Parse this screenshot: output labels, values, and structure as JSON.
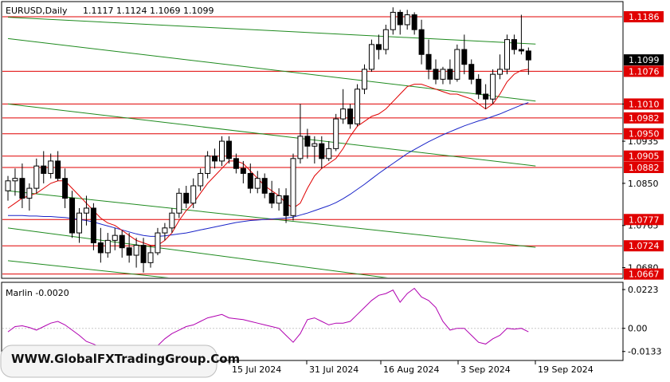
{
  "header": {
    "symbol_timeframe": "EURUSD,Daily",
    "ohlc": "1.1117 1.1124 1.1069 1.1099"
  },
  "watermark": "WWW.GlobalFXTradingGroup.Com",
  "colors": {
    "background": "#ffffff",
    "candle": "#000000",
    "level_line": "#e00000",
    "channel_line": "#1e8a1e",
    "ma_fast": "#e00000",
    "ma_slow": "#1a24c8",
    "oscillator": "#b000b0",
    "price_tag_bg": "#e00000",
    "current_price_bg": "#000000"
  },
  "chart_data": [
    {
      "type": "candlestick",
      "title": "EURUSD,Daily",
      "ylim": [
        1.066,
        1.1215
      ],
      "y_ticks": [
        "1.1010",
        "1.0935",
        "1.0850",
        "1.0765",
        "1.0680"
      ],
      "current_price": "1.1099",
      "levels": [
        "1.1186",
        "1.1076",
        "1.1010",
        "1.0982",
        "1.0950",
        "1.0905",
        "1.0882",
        "1.0777",
        "1.0724",
        "1.0667"
      ],
      "x_labels": [
        "15 Jul 2024",
        "31 Jul 2024",
        "16 Aug 2024",
        "3 Sep 2024",
        "19 Sep 2024"
      ],
      "candles": [
        [
          1.0835,
          1.0865,
          1.0815,
          1.0855
        ],
        [
          1.0855,
          1.088,
          1.0825,
          1.086
        ],
        [
          1.086,
          1.089,
          1.08,
          1.082
        ],
        [
          1.082,
          1.085,
          1.0795,
          1.084
        ],
        [
          1.084,
          1.09,
          1.083,
          1.0885
        ],
        [
          1.0885,
          1.0915,
          1.085,
          1.087
        ],
        [
          1.087,
          1.091,
          1.086,
          1.0895
        ],
        [
          1.0895,
          1.0915,
          1.0855,
          1.086
        ],
        [
          1.086,
          1.088,
          1.08,
          1.082
        ],
        [
          1.082,
          1.0835,
          1.074,
          1.075
        ],
        [
          1.075,
          1.08,
          1.073,
          1.079
        ],
        [
          1.079,
          1.0825,
          1.0765,
          1.08
        ],
        [
          1.08,
          1.081,
          1.0715,
          1.073
        ],
        [
          1.073,
          1.076,
          1.069,
          1.071
        ],
        [
          1.071,
          1.075,
          1.07,
          1.0735
        ],
        [
          1.0735,
          1.076,
          1.0715,
          1.0745
        ],
        [
          1.0745,
          1.0755,
          1.07,
          1.072
        ],
        [
          1.072,
          1.075,
          1.069,
          1.0705
        ],
        [
          1.0705,
          1.074,
          1.068,
          1.0725
        ],
        [
          1.0725,
          1.074,
          1.067,
          1.069
        ],
        [
          1.069,
          1.0725,
          1.068,
          1.071
        ],
        [
          1.071,
          1.076,
          1.0705,
          1.075
        ],
        [
          1.075,
          1.077,
          1.0735,
          1.076
        ],
        [
          1.076,
          1.08,
          1.075,
          1.079
        ],
        [
          1.079,
          1.084,
          1.078,
          1.083
        ],
        [
          1.083,
          1.0845,
          1.08,
          1.081
        ],
        [
          1.081,
          1.086,
          1.08,
          1.0845
        ],
        [
          1.0845,
          1.088,
          1.0835,
          1.087
        ],
        [
          1.087,
          1.0915,
          1.086,
          1.0905
        ],
        [
          1.0905,
          1.092,
          1.088,
          1.0895
        ],
        [
          1.0895,
          1.0945,
          1.0885,
          1.0935
        ],
        [
          1.0935,
          1.0945,
          1.089,
          1.09
        ],
        [
          1.09,
          1.091,
          1.087,
          1.088
        ],
        [
          1.088,
          1.0895,
          1.085,
          1.087
        ],
        [
          1.087,
          1.089,
          1.083,
          1.084
        ],
        [
          1.084,
          1.0875,
          1.083,
          1.086
        ],
        [
          1.086,
          1.087,
          1.082,
          1.083
        ],
        [
          1.083,
          1.0855,
          1.08,
          1.081
        ],
        [
          1.081,
          1.084,
          1.0795,
          1.0825
        ],
        [
          1.0825,
          1.084,
          1.077,
          1.0785
        ],
        [
          1.0785,
          1.091,
          1.0775,
          1.09
        ],
        [
          1.09,
          1.101,
          1.089,
          1.0945
        ],
        [
          1.0945,
          1.096,
          1.09,
          1.0925
        ],
        [
          1.0925,
          1.0945,
          1.089,
          1.093
        ],
        [
          1.093,
          1.0945,
          1.088,
          1.09
        ],
        [
          1.09,
          1.0935,
          1.0895,
          1.092
        ],
        [
          1.092,
          1.099,
          1.0915,
          1.098
        ],
        [
          1.098,
          1.104,
          1.097,
          1.1
        ],
        [
          1.1,
          1.101,
          1.096,
          1.097
        ],
        [
          1.097,
          1.105,
          1.0965,
          1.104
        ],
        [
          1.104,
          1.109,
          1.103,
          1.108
        ],
        [
          1.108,
          1.114,
          1.1075,
          1.113
        ],
        [
          1.113,
          1.115,
          1.11,
          1.112
        ],
        [
          1.112,
          1.117,
          1.111,
          1.116
        ],
        [
          1.116,
          1.1205,
          1.115,
          1.1195
        ],
        [
          1.1195,
          1.12,
          1.115,
          1.117
        ],
        [
          1.117,
          1.12,
          1.116,
          1.119
        ],
        [
          1.119,
          1.1195,
          1.115,
          1.116
        ],
        [
          1.116,
          1.118,
          1.109,
          1.111
        ],
        [
          1.111,
          1.114,
          1.106,
          1.108
        ],
        [
          1.108,
          1.11,
          1.105,
          1.106
        ],
        [
          1.106,
          1.1085,
          1.105,
          1.108
        ],
        [
          1.108,
          1.11,
          1.105,
          1.106
        ],
        [
          1.106,
          1.113,
          1.1055,
          1.112
        ],
        [
          1.112,
          1.115,
          1.107,
          1.109
        ],
        [
          1.109,
          1.11,
          1.105,
          1.106
        ],
        [
          1.106,
          1.107,
          1.102,
          1.103
        ],
        [
          1.103,
          1.105,
          1.1,
          1.102
        ],
        [
          1.102,
          1.108,
          1.101,
          1.107
        ],
        [
          1.107,
          1.111,
          1.106,
          1.108
        ],
        [
          1.108,
          1.115,
          1.107,
          1.114
        ],
        [
          1.114,
          1.115,
          1.111,
          1.112
        ],
        [
          1.112,
          1.119,
          1.111,
          1.1117
        ],
        [
          1.1117,
          1.1124,
          1.1069,
          1.1099
        ]
      ],
      "ma_fast": [
        1.08,
        1.081,
        1.082,
        1.0825,
        1.083,
        1.084,
        1.085,
        1.0855,
        1.0855,
        1.084,
        1.0825,
        1.081,
        1.0795,
        1.078,
        1.077,
        1.0765,
        1.0755,
        1.0745,
        1.0735,
        1.073,
        1.0725,
        1.0725,
        1.0735,
        1.075,
        1.0775,
        1.0795,
        1.081,
        1.083,
        1.085,
        1.0865,
        1.088,
        1.0895,
        1.0895,
        1.089,
        1.0875,
        1.086,
        1.0845,
        1.0835,
        1.0825,
        1.081,
        1.08,
        1.081,
        1.084,
        1.0865,
        1.088,
        1.089,
        1.09,
        1.092,
        1.0945,
        1.0965,
        1.0975,
        1.0985,
        1.099,
        1.1,
        1.1015,
        1.103,
        1.1045,
        1.105,
        1.105,
        1.1045,
        1.104,
        1.1035,
        1.103,
        1.103,
        1.1025,
        1.102,
        1.101,
        1.1,
        1.101,
        1.103,
        1.1055,
        1.107,
        1.1078,
        1.108
      ],
      "ma_slow": [
        1.0785,
        1.0785,
        1.0785,
        1.0784,
        1.0784,
        1.0783,
        1.0783,
        1.0782,
        1.0781,
        1.0779,
        1.0777,
        1.0775,
        1.0772,
        1.0768,
        1.0764,
        1.076,
        1.0756,
        1.0752,
        1.0748,
        1.0745,
        1.0743,
        1.0743,
        1.0744,
        1.0746,
        1.0748,
        1.075,
        1.0753,
        1.0756,
        1.0759,
        1.0762,
        1.0765,
        1.0768,
        1.0771,
        1.0773,
        1.0775,
        1.0776,
        1.0777,
        1.0778,
        1.0779,
        1.078,
        1.0782,
        1.0786,
        1.079,
        1.0795,
        1.08,
        1.0805,
        1.0811,
        1.0819,
        1.0828,
        1.0838,
        1.0848,
        1.0859,
        1.087,
        1.088,
        1.089,
        1.09,
        1.091,
        1.0918,
        1.0926,
        1.0934,
        1.0941,
        1.0948,
        1.0954,
        1.096,
        1.0966,
        1.0971,
        1.0976,
        1.098,
        1.0985,
        1.099,
        1.0996,
        1.1002,
        1.1008,
        1.1013
      ],
      "channel_lines": [
        {
          "from": [
            0,
            1.1185
          ],
          "to": [
            74,
            1.1131
          ]
        },
        {
          "from": [
            0,
            1.1142
          ],
          "to": [
            74,
            1.1016
          ]
        },
        {
          "from": [
            0,
            1.101
          ],
          "to": [
            74,
            1.0885
          ]
        },
        {
          "from": [
            0,
            1.0835
          ],
          "to": [
            74,
            1.0721
          ]
        },
        {
          "from": [
            0,
            1.076
          ],
          "to": [
            74,
            1.062
          ]
        },
        {
          "from": [
            0,
            1.0694
          ],
          "to": [
            74,
            1.058
          ]
        }
      ]
    },
    {
      "type": "line",
      "title": "Marlin -0.0020",
      "ylim": [
        -0.018,
        0.026
      ],
      "y_ticks": [
        "0.0223",
        "0.00",
        "-0.0133"
      ],
      "series": [
        {
          "values": [
            -0.002,
            0.001,
            0.0015,
            0.0005,
            -0.001,
            0.001,
            0.003,
            0.004,
            0.002,
            -0.001,
            -0.004,
            -0.0075,
            -0.009,
            -0.011,
            -0.012,
            -0.011,
            -0.0115,
            -0.013,
            -0.012,
            -0.0125,
            -0.013,
            -0.01,
            -0.006,
            -0.003,
            -0.001,
            0.001,
            0.002,
            0.004,
            0.006,
            0.007,
            0.008,
            0.006,
            0.0055,
            0.005,
            0.004,
            0.003,
            0.002,
            0.001,
            0.0,
            -0.004,
            -0.008,
            -0.003,
            0.005,
            0.006,
            0.004,
            0.002,
            0.003,
            0.003,
            0.004,
            0.008,
            0.012,
            0.016,
            0.019,
            0.02,
            0.022,
            0.015,
            0.02,
            0.023,
            0.018,
            0.016,
            0.012,
            0.004,
            -0.001,
            0.0,
            0.0,
            -0.004,
            -0.008,
            -0.009,
            -0.006,
            -0.004,
            0.0,
            -0.0005,
            0.0,
            -0.002
          ]
        }
      ]
    }
  ]
}
